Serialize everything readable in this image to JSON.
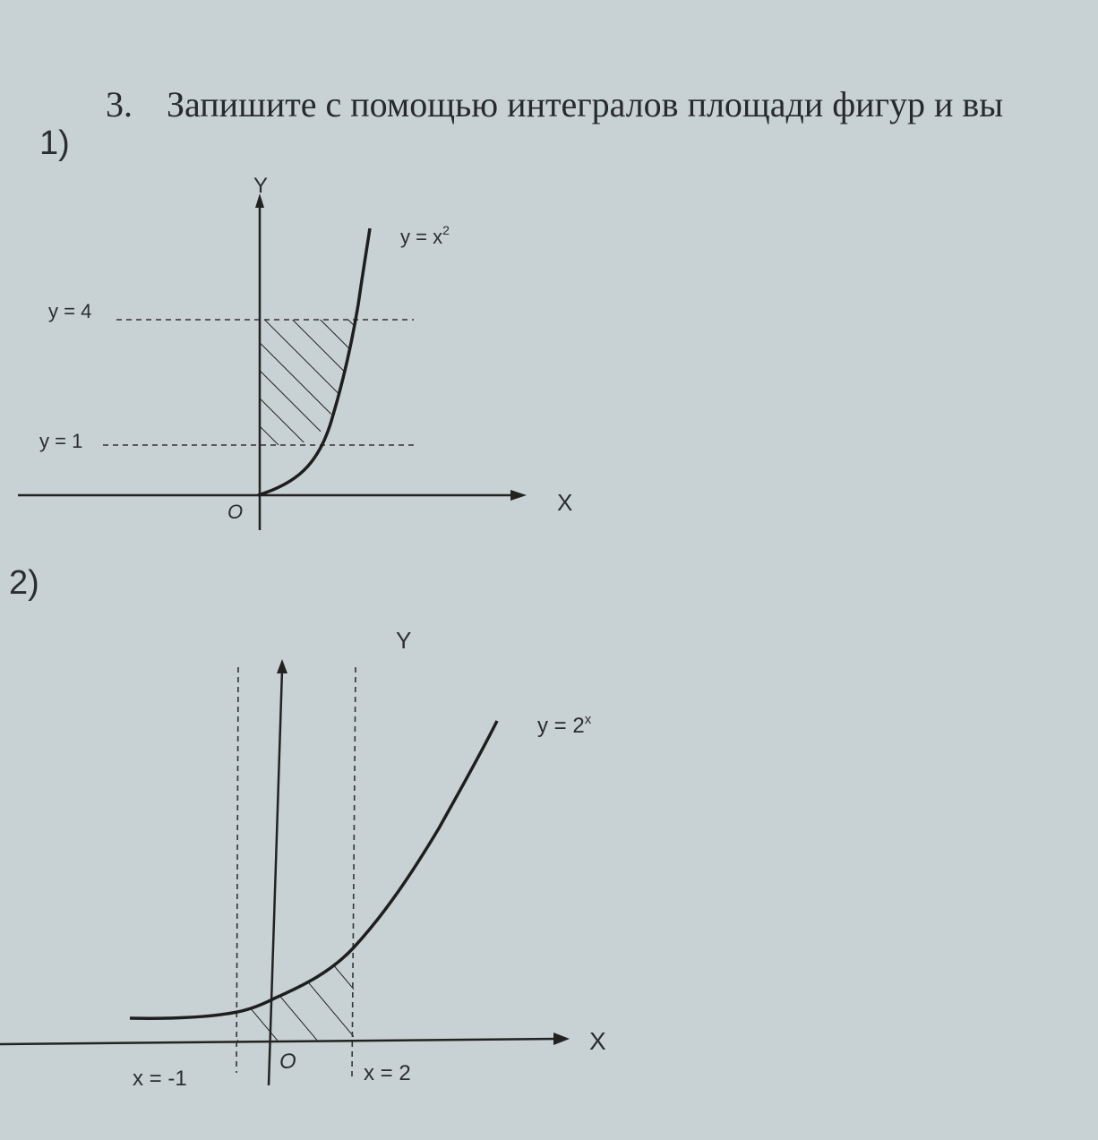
{
  "task": {
    "number": "3.",
    "text": "Запишите с помощью интегралов площади фигур и вы"
  },
  "figure1": {
    "label": "1)",
    "y_axis": "Y",
    "x_axis": "X",
    "origin": "O",
    "curve_label": "y = x",
    "curve_exponent": "2",
    "upper_line": "y = 4",
    "lower_line": "y = 1"
  },
  "figure2": {
    "label": "2)",
    "y_axis": "Y",
    "x_axis": "X",
    "origin": "O",
    "curve_label": "y = 2",
    "curve_exponent": "x",
    "left_line": "x = -1",
    "right_line": "x = 2"
  },
  "colors": {
    "paper": "#c8d1d3",
    "ink": "#222222"
  }
}
